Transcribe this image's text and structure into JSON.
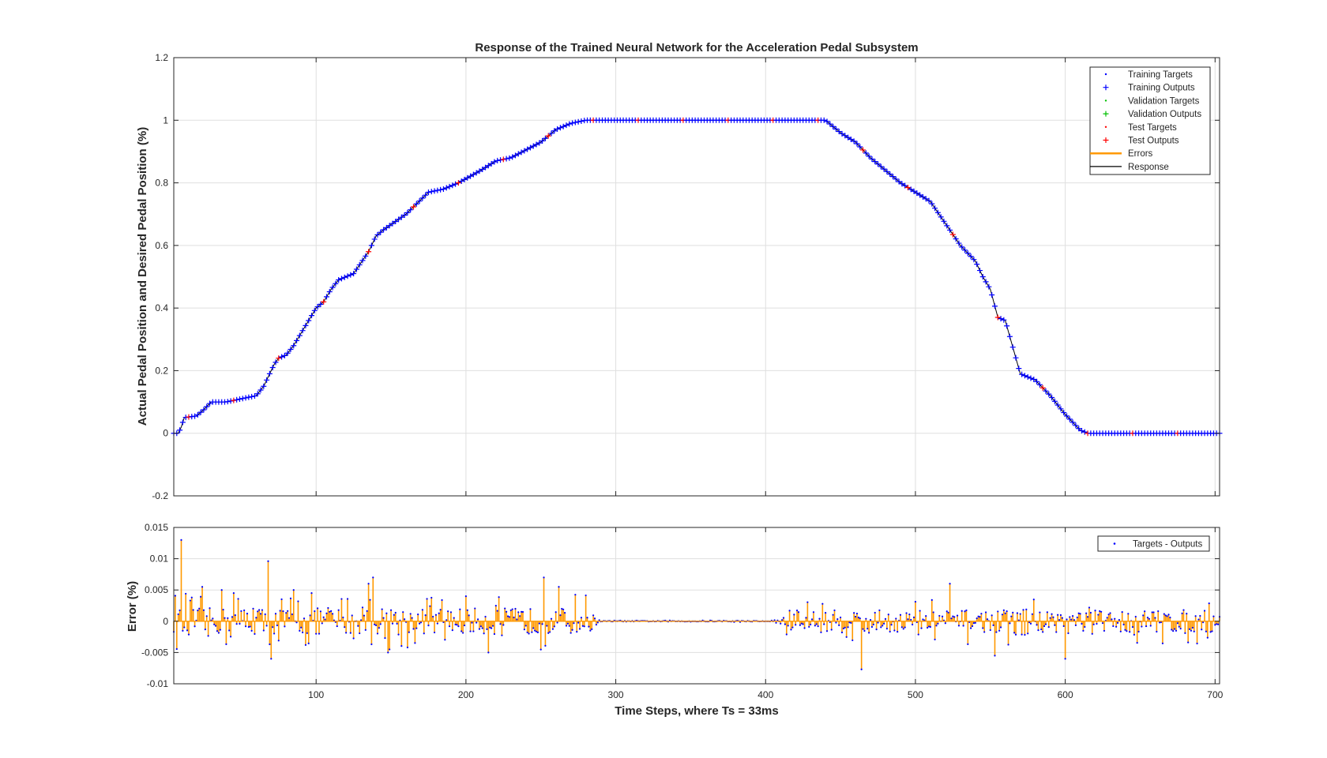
{
  "window": {
    "background": "#ffffff"
  },
  "chart_data": [
    {
      "type": "scatter",
      "panel": "response",
      "title": "Response of the Trained Neural Network for the Acceleration Pedal Subsystem",
      "xlabel": "",
      "ylabel": "Actual Pedal Position and Desired Pedal Position (%)",
      "xlim": [
        5,
        703
      ],
      "ylim": [
        -0.2,
        1.2
      ],
      "xticks": [
        100,
        200,
        300,
        400,
        500,
        600,
        700
      ],
      "yticks": [
        -0.2,
        0,
        0.2,
        0.4,
        0.6,
        0.8,
        1,
        1.2
      ],
      "yticklabels": [
        "-0.2",
        "0",
        "0.2",
        "0.4",
        "0.6",
        "0.8",
        "1",
        "1.2"
      ],
      "grid": true,
      "legend_position": "top-right",
      "legend": [
        {
          "label": "Training Targets",
          "marker": "dot",
          "color": "#0000ff"
        },
        {
          "label": "Training Outputs",
          "marker": "plus",
          "color": "#0000ff"
        },
        {
          "label": "Validation Targets",
          "marker": "dot",
          "color": "#00c000"
        },
        {
          "label": "Validation Outputs",
          "marker": "plus",
          "color": "#00c000"
        },
        {
          "label": "Test Targets",
          "marker": "dot",
          "color": "#ff0000"
        },
        {
          "label": "Test Outputs",
          "marker": "plus",
          "color": "#ff0000"
        },
        {
          "label": "Errors",
          "marker": "line",
          "color": "#ff9900"
        },
        {
          "label": "Response",
          "marker": "line",
          "color": "#000000"
        }
      ],
      "response_breakpoints": {
        "x": [
          5,
          8,
          10,
          12,
          20,
          25,
          30,
          40,
          60,
          65,
          72,
          75,
          80,
          85,
          90,
          95,
          100,
          105,
          110,
          115,
          125,
          135,
          140,
          145,
          160,
          175,
          185,
          195,
          210,
          220,
          230,
          250,
          260,
          270,
          280,
          300,
          350,
          400,
          435,
          440,
          445,
          450,
          460,
          470,
          480,
          490,
          500,
          510,
          520,
          530,
          540,
          545,
          550,
          555,
          560,
          570,
          580,
          590,
          600,
          610,
          615,
          650,
          703
        ],
        "y": [
          0,
          0,
          0.02,
          0.05,
          0.055,
          0.075,
          0.1,
          0.1,
          0.12,
          0.15,
          0.22,
          0.24,
          0.25,
          0.28,
          0.32,
          0.36,
          0.4,
          0.42,
          0.46,
          0.49,
          0.51,
          0.58,
          0.63,
          0.65,
          0.7,
          0.77,
          0.78,
          0.8,
          0.84,
          0.87,
          0.88,
          0.93,
          0.97,
          0.99,
          1.0,
          1.0,
          1.0,
          1.0,
          1.0,
          1.0,
          0.98,
          0.96,
          0.93,
          0.88,
          0.84,
          0.8,
          0.77,
          0.74,
          0.67,
          0.6,
          0.55,
          0.5,
          0.46,
          0.37,
          0.36,
          0.19,
          0.17,
          0.12,
          0.06,
          0.01,
          0,
          0,
          0
        ]
      },
      "sample_step": 1,
      "test_every": 5
    },
    {
      "type": "bar",
      "panel": "error",
      "xlabel": "Time Steps, where Ts = 33ms",
      "ylabel": "Error (%)",
      "xlim": [
        5,
        703
      ],
      "ylim": [
        -0.01,
        0.015
      ],
      "xticks": [
        100,
        200,
        300,
        400,
        500,
        600,
        700
      ],
      "xticklabels": [
        "100",
        "200",
        "300",
        "400",
        "500",
        "600",
        "700"
      ],
      "yticks": [
        -0.01,
        -0.005,
        0,
        0.005,
        0.01,
        0.015
      ],
      "yticklabels": [
        "-0.01",
        "-0.005",
        "0",
        "0.005",
        "0.01",
        "0.015"
      ],
      "grid": true,
      "legend_position": "top-right",
      "legend": [
        {
          "label": "Targets - Outputs",
          "marker": "dot",
          "color": "#0000ff"
        }
      ],
      "bar_color": "#ff9900",
      "dot_color": "#0000ff",
      "notable_errors": {
        "x": [
          10,
          24,
          37,
          45,
          68,
          70,
          85,
          97,
          135,
          138,
          148,
          200,
          215,
          252,
          262,
          464,
          523,
          553,
          600
        ],
        "y": [
          0.013,
          0.0055,
          0.005,
          0.0045,
          0.0096,
          -0.006,
          0.005,
          0.0045,
          0.006,
          0.007,
          -0.005,
          0.004,
          -0.005,
          0.007,
          0.0055,
          -0.0077,
          0.006,
          -0.0055,
          -0.006
        ]
      },
      "error_envelope": {
        "x": [
          5,
          280,
          290,
          405,
          415,
          703
        ],
        "amplitude": [
          0.0035,
          0.0035,
          0.0001,
          0.0001,
          0.003,
          0.003
        ]
      }
    }
  ]
}
